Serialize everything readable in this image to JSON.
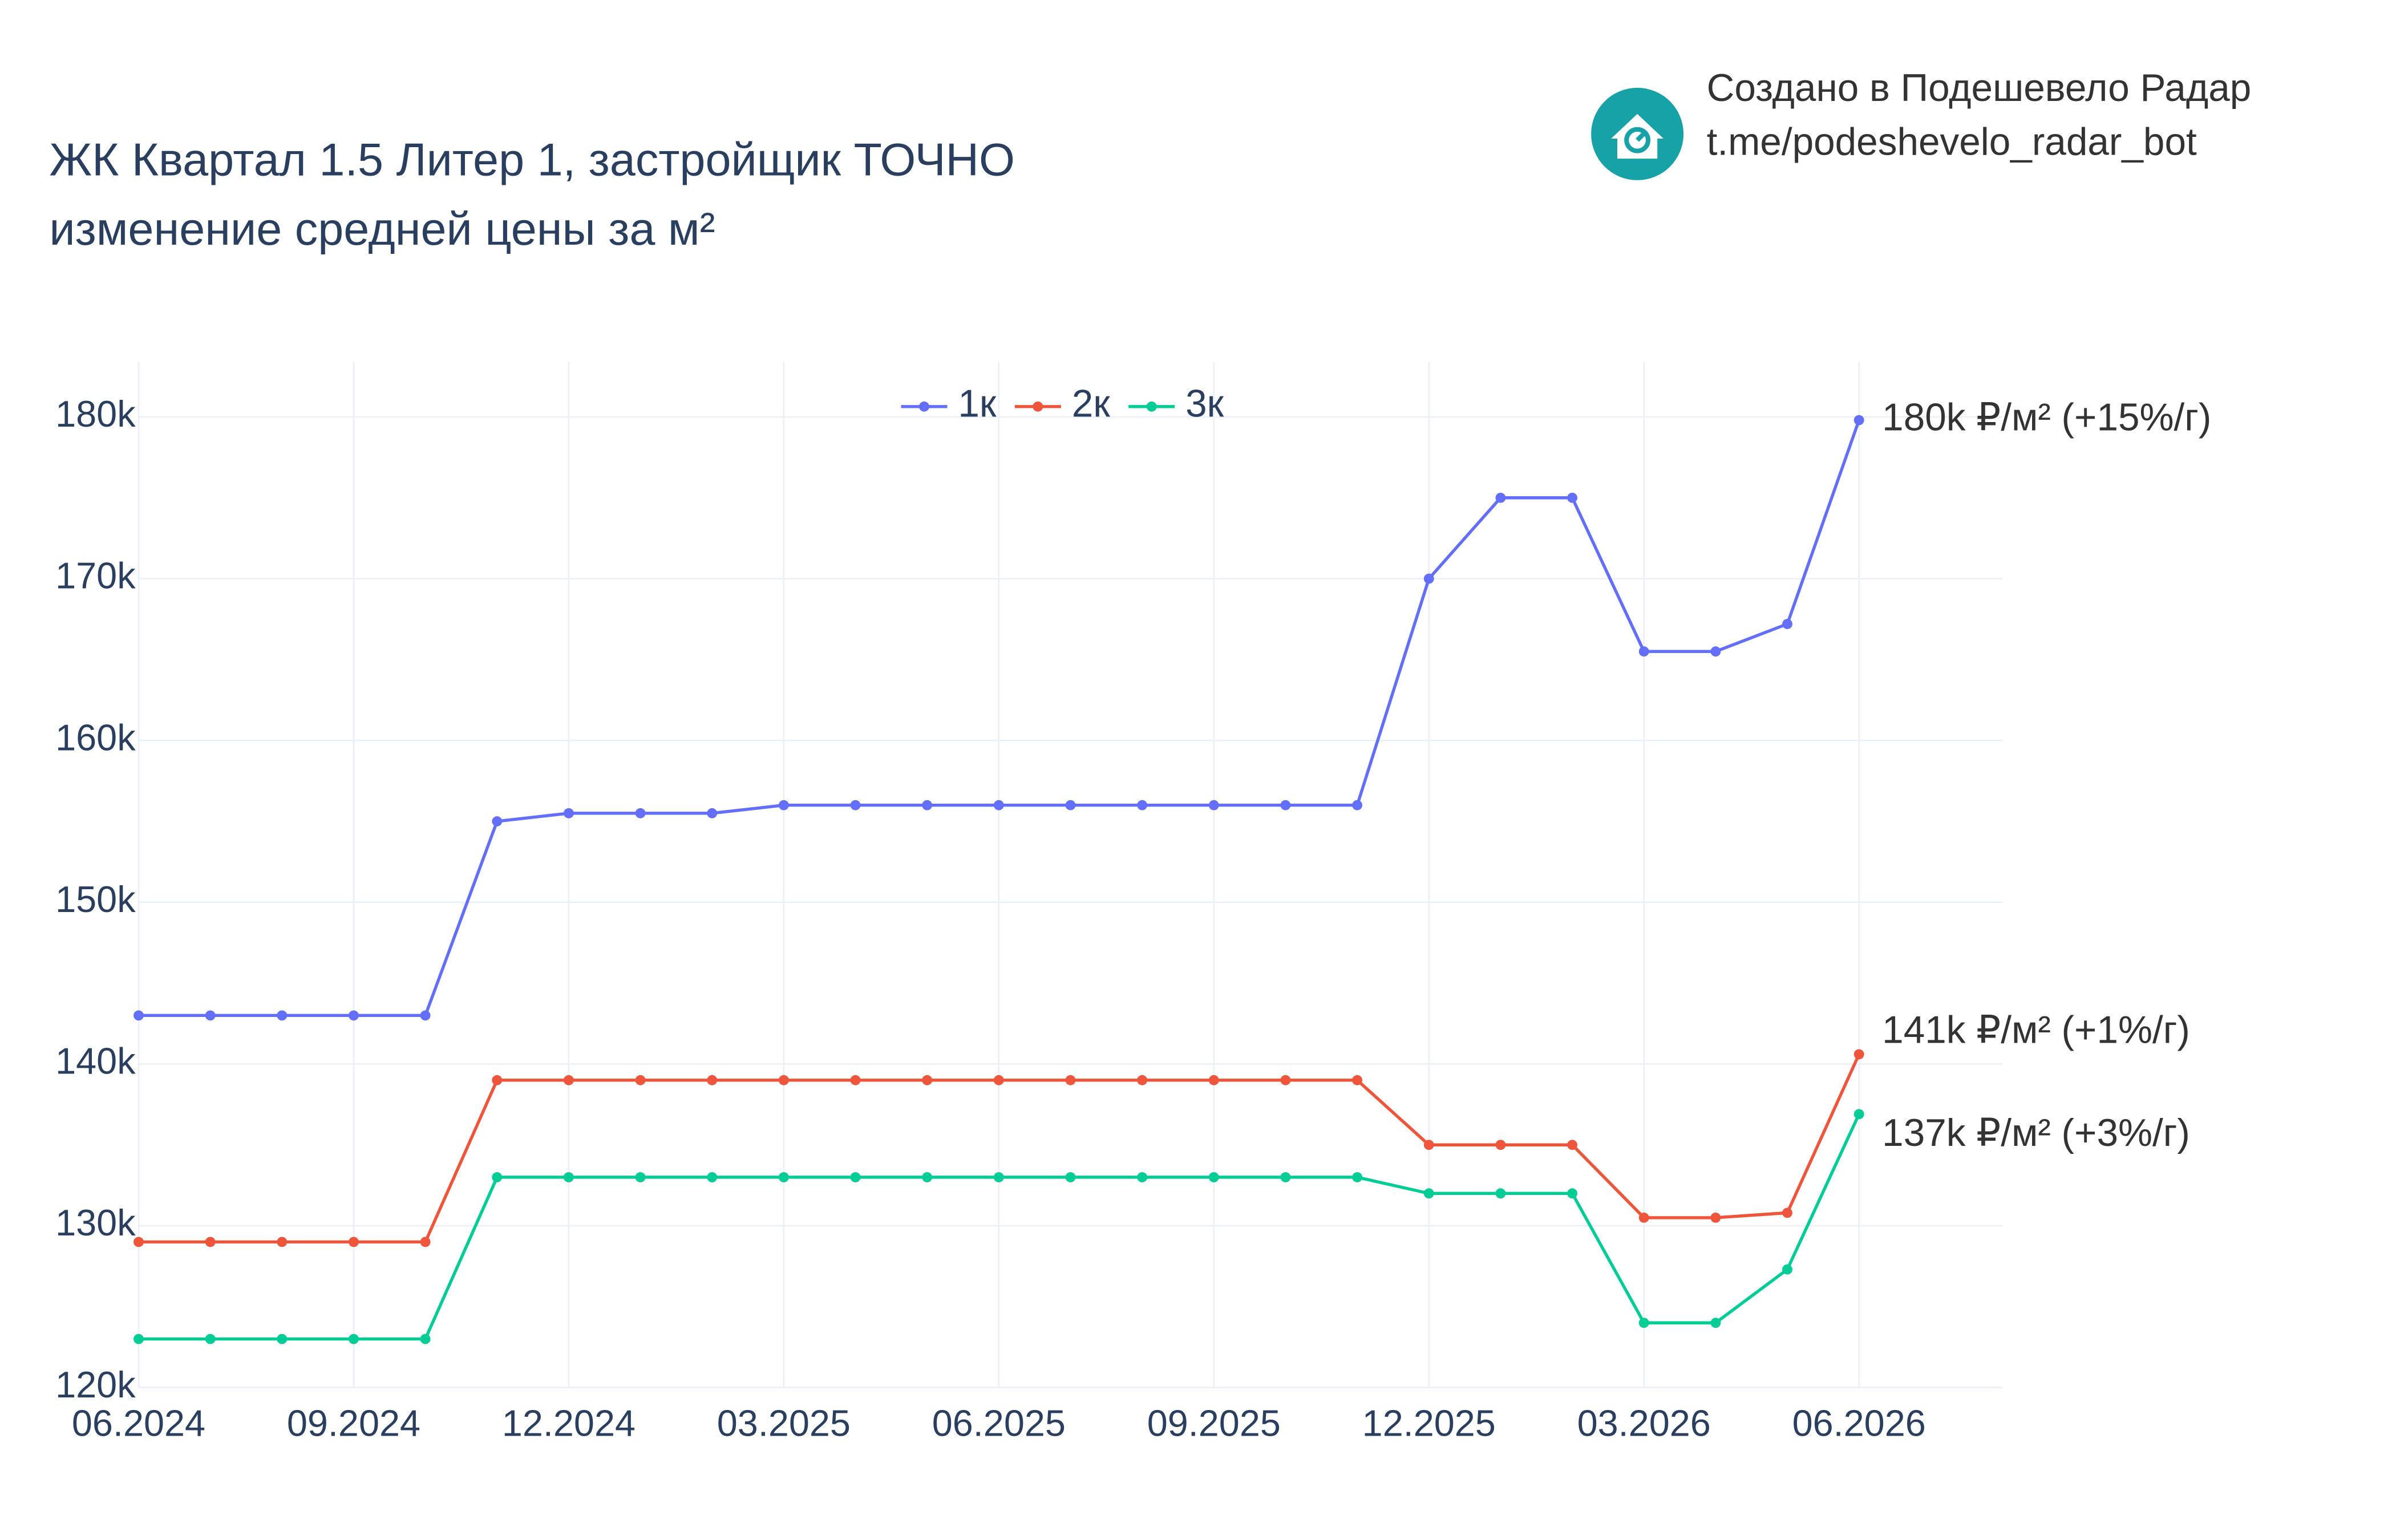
{
  "chart_data": {
    "type": "line",
    "title": "ЖК Квартал 1.5 Литер 1, застройщик ТОЧНО",
    "subtitle": "изменение средней цены за м²",
    "branding": {
      "line1": "Создано в Подешевело Радар",
      "line2": "t.me/podeshevelo_radar_bot"
    },
    "x": [
      "06.2024",
      "07.2024",
      "08.2024",
      "09.2024",
      "10.2024",
      "11.2024",
      "12.2024",
      "01.2025",
      "02.2025",
      "03.2025",
      "04.2025",
      "05.2025",
      "06.2025",
      "07.2025",
      "08.2025",
      "09.2025",
      "10.2025",
      "11.2025",
      "12.2025",
      "01.2026",
      "02.2026",
      "03.2026",
      "04.2026",
      "05.2026",
      "06.2026"
    ],
    "xlim": [
      "06.2024",
      "08.2026"
    ],
    "xticks": [
      "06.2024",
      "09.2024",
      "12.2024",
      "03.2025",
      "06.2025",
      "09.2025",
      "12.2025",
      "03.2026",
      "06.2026"
    ],
    "ylim": [
      120000,
      183400
    ],
    "yticks": [
      {
        "value": 120000,
        "label": "120k"
      },
      {
        "value": 130000,
        "label": "130k"
      },
      {
        "value": 140000,
        "label": "140k"
      },
      {
        "value": 150000,
        "label": "150k"
      },
      {
        "value": 160000,
        "label": "160k"
      },
      {
        "value": 170000,
        "label": "170k"
      },
      {
        "value": 180000,
        "label": "180k"
      }
    ],
    "grid": true,
    "legend": "top",
    "series": [
      {
        "name": "1к",
        "color": "#636efa",
        "end_label": "180k ₽/м² (+15%/г)",
        "values": [
          143000,
          143000,
          143000,
          143000,
          143000,
          155000,
          155500,
          155500,
          155500,
          156000,
          156000,
          156000,
          156000,
          156000,
          156000,
          156000,
          156000,
          156000,
          170000,
          175000,
          175000,
          165500,
          165500,
          167200,
          179800
        ]
      },
      {
        "name": "2к",
        "color": "#ef553b",
        "end_label": "141k ₽/м² (+1%/г)",
        "values": [
          129000,
          129000,
          129000,
          129000,
          129000,
          139000,
          139000,
          139000,
          139000,
          139000,
          139000,
          139000,
          139000,
          139000,
          139000,
          139000,
          139000,
          139000,
          135000,
          135000,
          135000,
          130500,
          130500,
          130800,
          140600
        ]
      },
      {
        "name": "3к",
        "color": "#00cc96",
        "end_label": "137k ₽/м² (+3%/г)",
        "values": [
          123000,
          123000,
          123000,
          123000,
          123000,
          133000,
          133000,
          133000,
          133000,
          133000,
          133000,
          133000,
          133000,
          133000,
          133000,
          133000,
          133000,
          133000,
          132000,
          132000,
          132000,
          124000,
          124000,
          127300,
          136900
        ]
      }
    ]
  }
}
